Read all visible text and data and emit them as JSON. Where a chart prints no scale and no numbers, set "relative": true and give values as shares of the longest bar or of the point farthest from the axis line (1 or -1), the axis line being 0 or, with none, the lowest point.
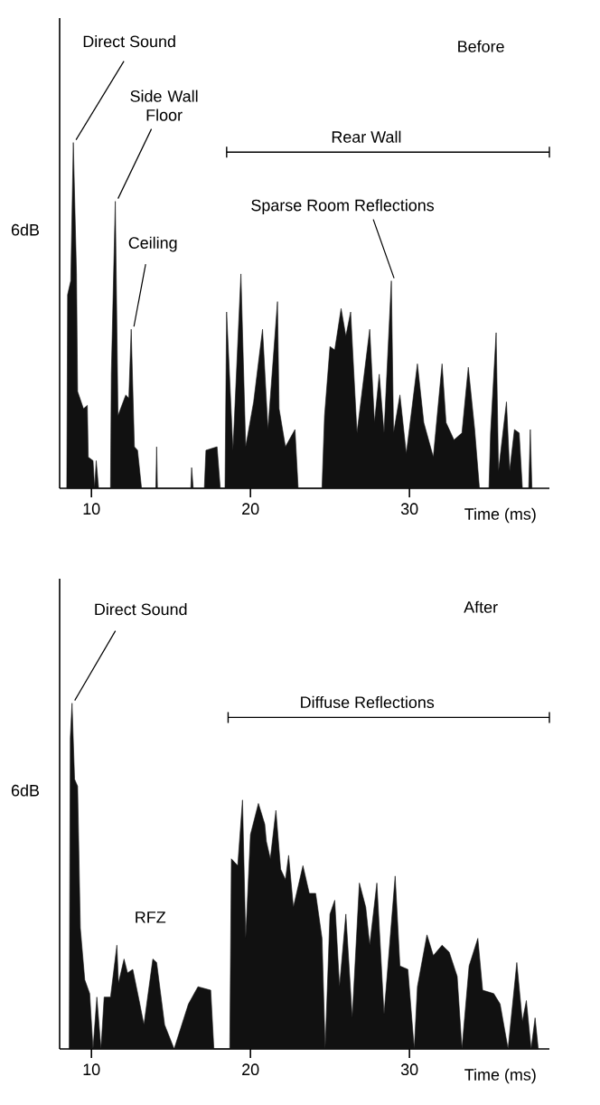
{
  "chart_data": [
    {
      "type": "area",
      "relative": true,
      "title": "Before",
      "xlabel": "Time (ms)",
      "ylabel": "6dB",
      "color": "#111111",
      "xlim": [
        8,
        38.8
      ],
      "xticks": [
        10,
        20,
        30
      ],
      "x": [
        8.45,
        8.5,
        8.7,
        8.86,
        9.06,
        9.13,
        9.5,
        9.74,
        9.8,
        10.1,
        10.2,
        10.3,
        10.45,
        11.2,
        11.25,
        11.5,
        11.67,
        12.16,
        12.35,
        12.5,
        12.7,
        12.9,
        13.15,
        14.05,
        14.1,
        14.15,
        16.25,
        16.3,
        16.4,
        17.1,
        17.2,
        17.9,
        18.1,
        18.4,
        18.5,
        18.9,
        19.4,
        19.7,
        20.2,
        20.76,
        21.1,
        21.7,
        21.8,
        22.2,
        22.8,
        23.0,
        24.5,
        24.66,
        25.0,
        25.3,
        25.7,
        26.0,
        26.3,
        26.7,
        27.5,
        27.8,
        28.1,
        28.4,
        28.86,
        29.0,
        29.4,
        29.8,
        30.5,
        30.9,
        31.5,
        32.05,
        32.3,
        32.8,
        33.3,
        33.7,
        34.1,
        34.4,
        35.0,
        35.1,
        35.45,
        35.6,
        36.1,
        36.3,
        36.6,
        36.9,
        37.1,
        37.5,
        37.6,
        37.7
      ],
      "values": [
        0,
        0.56,
        0.6,
        1.0,
        0.62,
        0.28,
        0.23,
        0.24,
        0.09,
        0.08,
        0,
        0.08,
        0,
        0,
        0.33,
        0.83,
        0.21,
        0.27,
        0.26,
        0.46,
        0.12,
        0.11,
        0,
        0,
        0.12,
        0,
        0,
        0.06,
        0,
        0,
        0.11,
        0.12,
        0,
        0,
        0.51,
        0.11,
        0.62,
        0.12,
        0.25,
        0.46,
        0.17,
        0.54,
        0.23,
        0.12,
        0.17,
        0,
        0,
        0.21,
        0.41,
        0.4,
        0.52,
        0.44,
        0.51,
        0.16,
        0.46,
        0.19,
        0.33,
        0.16,
        0.6,
        0.16,
        0.27,
        0.1,
        0.36,
        0.19,
        0.09,
        0.36,
        0.19,
        0.14,
        0.16,
        0.35,
        0.17,
        0,
        0,
        0.16,
        0.45,
        0.05,
        0.25,
        0.05,
        0.17,
        0.16,
        0,
        0,
        0.17,
        0
      ],
      "annotations": [
        {
          "text": "Direct Sound",
          "x": 8.86,
          "y": 1.0
        },
        {
          "text": "Side Wall Floor",
          "x": 11.5,
          "y": 0.83
        },
        {
          "text": "Ceiling",
          "x": 12.5,
          "y": 0.46
        },
        {
          "text": "Sparse Room Reflections",
          "x": 28.86,
          "y": 0.6
        },
        "Rear Wall"
      ]
    },
    {
      "type": "area",
      "relative": true,
      "title": "After",
      "xlabel": "Time (ms)",
      "ylabel": "6dB",
      "color": "#111111",
      "xlim": [
        8,
        38.8
      ],
      "xticks": [
        10,
        20,
        30
      ],
      "x": [
        8.6,
        8.67,
        8.78,
        8.94,
        9.13,
        9.3,
        9.58,
        9.89,
        10.1,
        10.34,
        10.6,
        10.8,
        11.2,
        11.6,
        11.7,
        12.05,
        12.27,
        12.6,
        13.0,
        13.3,
        13.86,
        14.1,
        14.6,
        15.2,
        16.1,
        16.7,
        17.5,
        17.7,
        18.7,
        18.8,
        19.2,
        19.5,
        19.7,
        20.0,
        20.5,
        20.9,
        21.0,
        21.25,
        21.6,
        21.9,
        22.2,
        22.4,
        22.7,
        23.3,
        23.7,
        24.1,
        24.5,
        24.7,
        25.0,
        25.3,
        25.6,
        26.0,
        26.4,
        26.85,
        27.25,
        27.5,
        27.95,
        28.4,
        29.1,
        29.4,
        29.9,
        30.3,
        30.5,
        31.1,
        31.5,
        32.05,
        32.5,
        33.0,
        33.3,
        33.75,
        34.3,
        34.6,
        35.3,
        35.7,
        36.2,
        36.75,
        37.1,
        37.35,
        37.65,
        37.9,
        38.1
      ],
      "values": [
        0,
        0.9,
        1.0,
        0.78,
        0.76,
        0.35,
        0.2,
        0.16,
        0,
        0.15,
        0,
        0.15,
        0.15,
        0.3,
        0.19,
        0.26,
        0.22,
        0.23,
        0.14,
        0.07,
        0.26,
        0.25,
        0.07,
        0,
        0.13,
        0.18,
        0.17,
        0,
        0,
        0.55,
        0.53,
        0.72,
        0.32,
        0.62,
        0.71,
        0.65,
        0.6,
        0.55,
        0.69,
        0.52,
        0.49,
        0.56,
        0.41,
        0.53,
        0.45,
        0.45,
        0.32,
        0,
        0.39,
        0.43,
        0.18,
        0.39,
        0.09,
        0.48,
        0.41,
        0.3,
        0.48,
        0.1,
        0.5,
        0.24,
        0.23,
        0,
        0.18,
        0.33,
        0.27,
        0.3,
        0.28,
        0.21,
        0,
        0.24,
        0.32,
        0.17,
        0.16,
        0.13,
        0,
        0.25,
        0.08,
        0.14,
        0,
        0.09,
        0
      ],
      "annotations": [
        {
          "text": "Direct Sound",
          "x": 8.78,
          "y": 1.0
        },
        "RFZ",
        "Diffuse Reflections"
      ]
    }
  ]
}
